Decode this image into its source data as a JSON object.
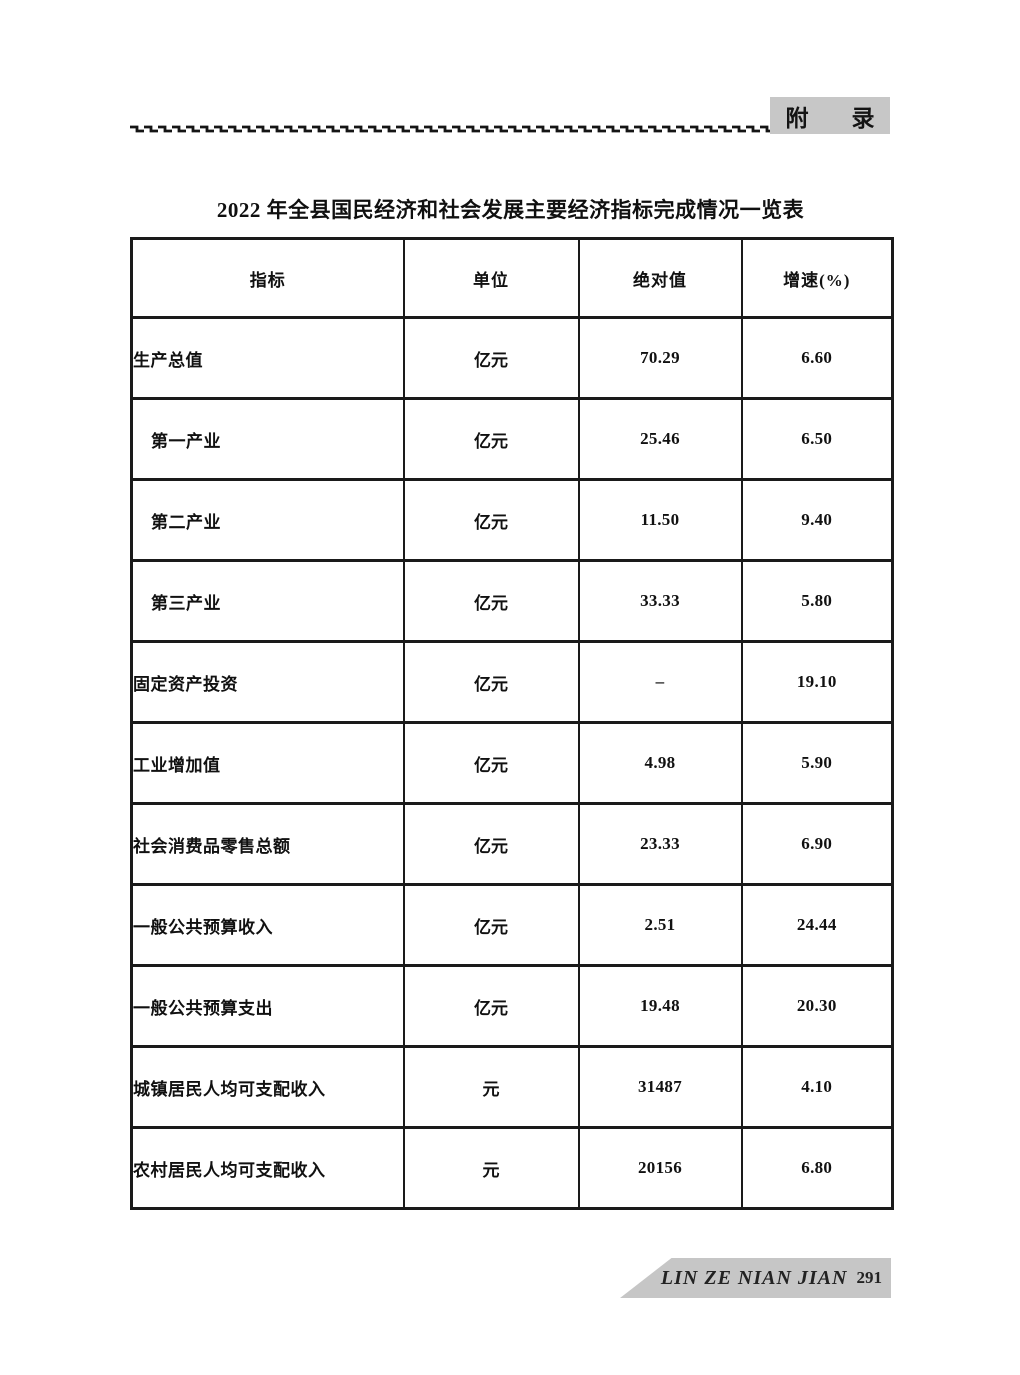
{
  "header": {
    "tab_label": "附　录"
  },
  "title": "2022 年全县国民经济和社会发展主要经济指标完成情况一览表",
  "table": {
    "columns": [
      "指标",
      "单位",
      "绝对值",
      "增速(%)"
    ],
    "rows": [
      {
        "indicator": "生产总值",
        "unit": "亿元",
        "value": "70.29",
        "growth": "6.60",
        "indent": false
      },
      {
        "indicator": "第一产业",
        "unit": "亿元",
        "value": "25.46",
        "growth": "6.50",
        "indent": true
      },
      {
        "indicator": "第二产业",
        "unit": "亿元",
        "value": "11.50",
        "growth": "9.40",
        "indent": true
      },
      {
        "indicator": "第三产业",
        "unit": "亿元",
        "value": "33.33",
        "growth": "5.80",
        "indent": true
      },
      {
        "indicator": "固定资产投资",
        "unit": "亿元",
        "value": "–",
        "growth": "19.10",
        "indent": false
      },
      {
        "indicator": "工业增加值",
        "unit": "亿元",
        "value": "4.98",
        "growth": "5.90",
        "indent": false
      },
      {
        "indicator": "社会消费品零售总额",
        "unit": "亿元",
        "value": "23.33",
        "growth": "6.90",
        "indent": false
      },
      {
        "indicator": "一般公共预算收入",
        "unit": "亿元",
        "value": "2.51",
        "growth": "24.44",
        "indent": false
      },
      {
        "indicator": "一般公共预算支出",
        "unit": "亿元",
        "value": "19.48",
        "growth": "20.30",
        "indent": false
      },
      {
        "indicator": "城镇居民人均可支配收入",
        "unit": "元",
        "value": "31487",
        "growth": "4.10",
        "indent": false
      },
      {
        "indicator": "农村居民人均可支配收入",
        "unit": "元",
        "value": "20156",
        "growth": "6.80",
        "indent": false
      }
    ]
  },
  "footer": {
    "book_title": "LIN ZE NIAN JIAN",
    "page_number": "291"
  },
  "colors": {
    "ink": "#1a1a1a",
    "tab_gray": "#c7c7c7",
    "footer_gray": "#c6c6c6"
  }
}
